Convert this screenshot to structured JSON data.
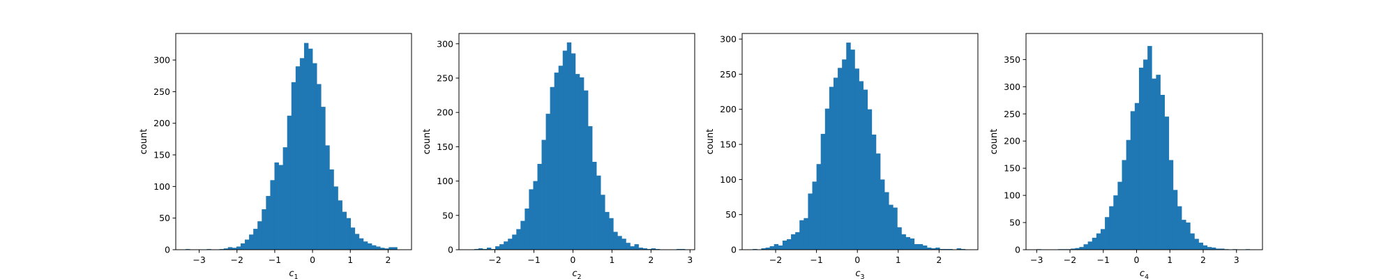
{
  "chart_data": [
    {
      "type": "bar",
      "xlabel": "c",
      "xlabel_sub": "1",
      "ylabel": "count",
      "xlim": [
        -3.62,
        2.62
      ],
      "ylim": [
        0,
        342
      ],
      "xticks": [
        -3,
        -2,
        -1,
        0,
        1,
        2
      ],
      "yticks": [
        0,
        50,
        100,
        150,
        200,
        250,
        300
      ],
      "bin_width": 0.112,
      "bins_x0": [
        -3.36,
        -3.248,
        -3.136,
        -3.024,
        -2.912,
        -2.8,
        -2.688,
        -2.576,
        -2.464,
        -2.352,
        -2.24,
        -2.128,
        -2.016,
        -1.904,
        -1.792,
        -1.68,
        -1.568,
        -1.456,
        -1.344,
        -1.232,
        -1.12,
        -1.008,
        -0.896,
        -0.784,
        -0.672,
        -0.56,
        -0.448,
        -0.336,
        -0.224,
        -0.112,
        0.0,
        0.112,
        0.224,
        0.336,
        0.448,
        0.56,
        0.672,
        0.784,
        0.896,
        1.008,
        1.12,
        1.232,
        1.344,
        1.456,
        1.568,
        1.68,
        1.792,
        1.904,
        2.016,
        2.128
      ],
      "counts": [
        1,
        0,
        0,
        0,
        0,
        1,
        0,
        0,
        1,
        2,
        4,
        3,
        5,
        10,
        16,
        24,
        33,
        45,
        64,
        85,
        110,
        138,
        134,
        162,
        212,
        265,
        290,
        303,
        327,
        318,
        295,
        262,
        226,
        165,
        127,
        100,
        78,
        60,
        50,
        35,
        25,
        18,
        13,
        10,
        7,
        5,
        3,
        2,
        4,
        4
      ]
    },
    {
      "type": "bar",
      "xlabel": "c",
      "xlabel_sub": "2",
      "ylabel": "count",
      "xlim": [
        -2.92,
        3.12
      ],
      "ylim": [
        0,
        315
      ],
      "xticks": [
        -2,
        -1,
        0,
        1,
        2,
        3
      ],
      "yticks": [
        0,
        50,
        100,
        150,
        200,
        250,
        300
      ],
      "bin_width": 0.108,
      "bins_x0": [
        -2.53,
        -2.422,
        -2.314,
        -2.206,
        -2.098,
        -1.99,
        -1.882,
        -1.774,
        -1.666,
        -1.558,
        -1.45,
        -1.342,
        -1.234,
        -1.126,
        -1.018,
        -0.91,
        -0.802,
        -0.694,
        -0.586,
        -0.478,
        -0.37,
        -0.262,
        -0.154,
        -0.046,
        0.062,
        0.17,
        0.278,
        0.386,
        0.494,
        0.602,
        0.71,
        0.818,
        0.926,
        1.034,
        1.142,
        1.25,
        1.358,
        1.466,
        1.574,
        1.682,
        1.79,
        1.898,
        2.006,
        2.114,
        2.222,
        2.33,
        2.438,
        2.546,
        2.654,
        2.762
      ],
      "counts": [
        1,
        2,
        1,
        3,
        1,
        5,
        8,
        12,
        16,
        22,
        30,
        42,
        60,
        88,
        100,
        125,
        160,
        198,
        237,
        258,
        268,
        290,
        302,
        286,
        256,
        251,
        232,
        180,
        128,
        108,
        80,
        55,
        46,
        26,
        20,
        16,
        10,
        5,
        8,
        3,
        2,
        1,
        2,
        1,
        0,
        0,
        0,
        0,
        1,
        1
      ]
    },
    {
      "type": "bar",
      "xlabel": "c",
      "xlabel_sub": "3",
      "ylabel": "count",
      "xlim": [
        -2.82,
        2.95
      ],
      "ylim": [
        0,
        308
      ],
      "xticks": [
        -2,
        -1,
        0,
        1,
        2
      ],
      "yticks": [
        0,
        50,
        100,
        150,
        200,
        250,
        300
      ],
      "bin_width": 0.104,
      "bins_x0": [
        -2.56,
        -2.456,
        -2.352,
        -2.248,
        -2.144,
        -2.04,
        -1.936,
        -1.832,
        -1.728,
        -1.624,
        -1.52,
        -1.416,
        -1.312,
        -1.208,
        -1.104,
        -1.0,
        -0.896,
        -0.792,
        -0.688,
        -0.584,
        -0.48,
        -0.376,
        -0.272,
        -0.168,
        -0.064,
        0.04,
        0.144,
        0.248,
        0.352,
        0.456,
        0.56,
        0.664,
        0.768,
        0.872,
        0.976,
        1.08,
        1.184,
        1.288,
        1.392,
        1.496,
        1.6,
        1.704,
        1.808,
        1.912,
        2.016,
        2.12,
        2.224,
        2.328,
        2.432,
        2.536
      ],
      "counts": [
        1,
        0,
        2,
        3,
        5,
        8,
        6,
        13,
        15,
        22,
        25,
        42,
        45,
        80,
        97,
        122,
        165,
        201,
        232,
        245,
        259,
        271,
        295,
        285,
        258,
        240,
        228,
        200,
        164,
        137,
        100,
        82,
        64,
        60,
        32,
        22,
        18,
        16,
        8,
        8,
        6,
        3,
        2,
        3,
        1,
        1,
        1,
        0,
        2,
        1
      ]
    },
    {
      "type": "bar",
      "xlabel": "c",
      "xlabel_sub": "4",
      "ylabel": "count",
      "xlim": [
        -3.32,
        3.78
      ],
      "ylim": [
        0,
        398
      ],
      "xticks": [
        -3,
        -2,
        -1,
        0,
        1,
        2,
        3
      ],
      "yticks": [
        0,
        50,
        100,
        150,
        200,
        250,
        300,
        350
      ],
      "bin_width": 0.128,
      "bins_x0": [
        -3.0,
        -2.872,
        -2.744,
        -2.616,
        -2.488,
        -2.36,
        -2.232,
        -2.104,
        -1.976,
        -1.848,
        -1.72,
        -1.592,
        -1.464,
        -1.336,
        -1.208,
        -1.08,
        -0.952,
        -0.824,
        -0.696,
        -0.568,
        -0.44,
        -0.312,
        -0.184,
        -0.056,
        0.072,
        0.2,
        0.328,
        0.456,
        0.584,
        0.712,
        0.84,
        0.968,
        1.096,
        1.224,
        1.352,
        1.48,
        1.608,
        1.736,
        1.864,
        1.992,
        2.12,
        2.248,
        2.376,
        2.504,
        2.632,
        2.76,
        2.888,
        3.016,
        3.144,
        3.272
      ],
      "counts": [
        1,
        0,
        0,
        0,
        0,
        1,
        1,
        1,
        2,
        3,
        5,
        10,
        15,
        22,
        30,
        38,
        60,
        80,
        100,
        125,
        165,
        202,
        255,
        270,
        335,
        350,
        375,
        315,
        322,
        285,
        245,
        165,
        110,
        80,
        55,
        50,
        30,
        20,
        13,
        8,
        5,
        4,
        2,
        2,
        1,
        0,
        1,
        0,
        0,
        1
      ]
    }
  ]
}
